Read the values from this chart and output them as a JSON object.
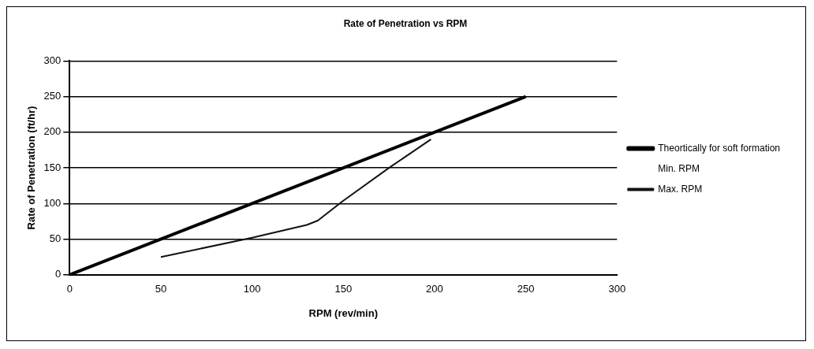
{
  "chart_data": {
    "type": "line",
    "title": "Rate of Penetration vs RPM",
    "xlabel": "RPM (rev/min)",
    "ylabel": "Rate of Penetration (ft/hr)",
    "xlim": [
      0,
      300
    ],
    "xticks": [
      0,
      50,
      100,
      150,
      200,
      250,
      300
    ],
    "ylim": [
      0,
      300
    ],
    "yticks": [
      0,
      50,
      100,
      150,
      200,
      250,
      300
    ],
    "grid": "y",
    "legend": "right",
    "marker": "none",
    "line_style": "solid",
    "series": [
      {
        "name": "Theortically for soft formation",
        "color": "#000000",
        "x": [
          0,
          250
        ],
        "values": [
          0,
          250
        ]
      },
      {
        "name": "Min. RPM"
      },
      {
        "name": "Max. RPM",
        "color": "#111111",
        "x": [
          50,
          100,
          130,
          136,
          150,
          175,
          198
        ],
        "values": [
          25,
          52,
          70,
          76,
          104,
          150,
          190
        ]
      }
    ]
  }
}
